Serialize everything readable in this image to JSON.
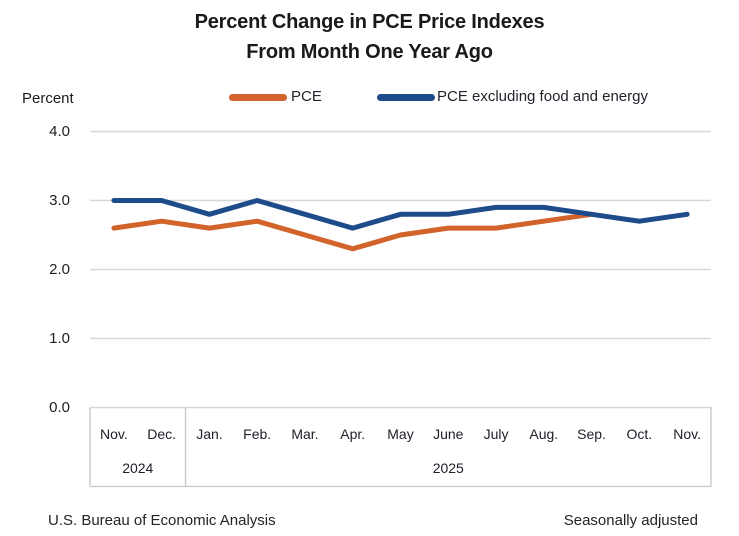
{
  "header": {
    "title_line1": "Percent Change in PCE Price Indexes",
    "title_line2": "From Month One Year Ago"
  },
  "axis_unit_label": "Percent",
  "legend": [
    {
      "label": "PCE",
      "color": "#d2642b"
    },
    {
      "label": "PCE excluding food and energy",
      "color": "#1e4b8a"
    }
  ],
  "footer": {
    "left": "U.S. Bureau of Economic Analysis",
    "right": "Seasonally adjusted"
  },
  "chart_data": {
    "type": "line",
    "title": "Percent Change in PCE Price Indexes From Month One Year Ago",
    "ylabel": "Percent",
    "ylim": [
      0.0,
      4.0
    ],
    "ytick_labels": [
      "0.0",
      "1.0",
      "2.0",
      "3.0",
      "4.0"
    ],
    "grid": true,
    "legend_position": "top",
    "categories": [
      "Nov.",
      "Dec.",
      "Jan.",
      "Feb.",
      "Mar.",
      "Apr.",
      "May",
      "June",
      "July",
      "Aug.",
      "Sep.",
      "Oct.",
      "Nov."
    ],
    "year_groups": [
      {
        "label": "2024",
        "months": 2
      },
      {
        "label": "2025",
        "months": 11
      }
    ],
    "series": [
      {
        "name": "PCE",
        "color": "#d2642b",
        "values": [
          2.6,
          2.7,
          2.6,
          2.7,
          2.5,
          2.3,
          2.5,
          2.6,
          2.6,
          2.7,
          2.8,
          null,
          null
        ]
      },
      {
        "name": "PCE excluding food and energy",
        "color": "#1e4b8a",
        "values": [
          3.0,
          3.0,
          2.8,
          3.0,
          2.8,
          2.6,
          2.8,
          2.8,
          2.9,
          2.9,
          2.8,
          2.7,
          2.8
        ]
      }
    ],
    "note": "Seasonally adjusted",
    "source": "U.S. Bureau of Economic Analysis"
  }
}
